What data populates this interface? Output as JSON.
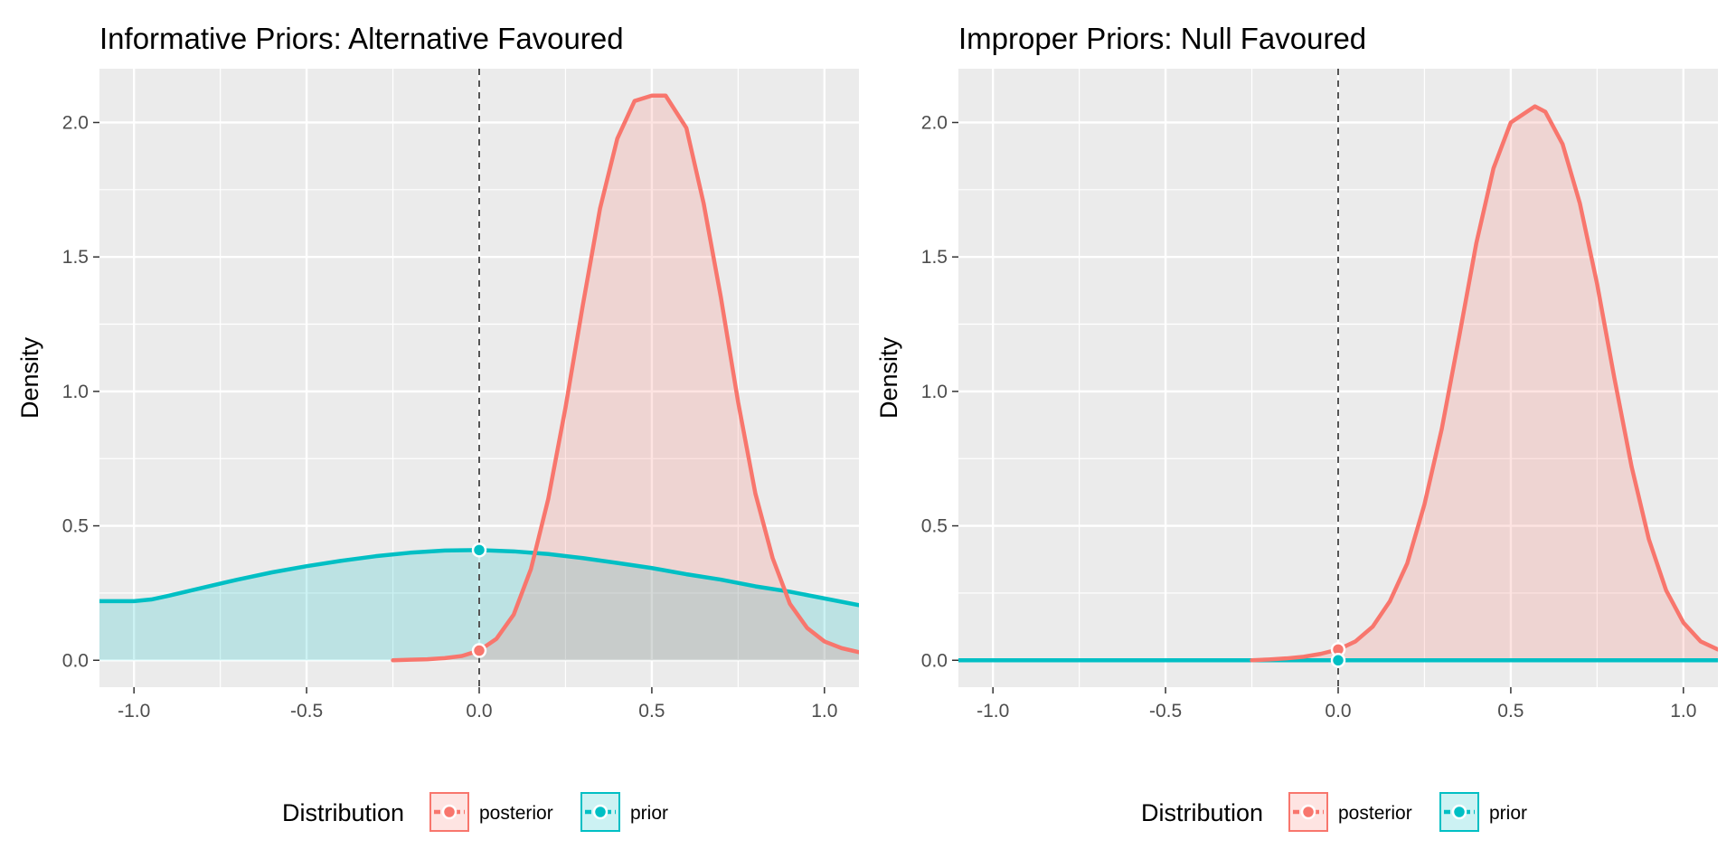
{
  "chart_data": [
    {
      "type": "line",
      "title": "Informative Priors: Alternative Favoured",
      "xlabel": "",
      "ylabel": "Density",
      "xlim": [
        -1.1,
        1.1
      ],
      "ylim": [
        -0.1,
        2.2
      ],
      "x_ticks": [
        "-1.0",
        "-0.5",
        "0.0",
        "0.5",
        "1.0"
      ],
      "y_ticks": [
        "0.0",
        "0.5",
        "1.0",
        "1.5",
        "2.0"
      ],
      "grid": true,
      "reference_line": {
        "x": 0,
        "style": "dashed"
      },
      "series": [
        {
          "name": "posterior",
          "color": "#F8766D",
          "filled": true,
          "x": [
            -0.25,
            -0.2,
            -0.15,
            -0.1,
            -0.05,
            0.0,
            0.05,
            0.1,
            0.15,
            0.2,
            0.25,
            0.3,
            0.35,
            0.4,
            0.45,
            0.5,
            0.54,
            0.6,
            0.65,
            0.7,
            0.75,
            0.8,
            0.85,
            0.9,
            0.95,
            1.0,
            1.05,
            1.1
          ],
          "y": [
            0.0,
            0.002,
            0.004,
            0.008,
            0.016,
            0.036,
            0.08,
            0.17,
            0.34,
            0.6,
            0.94,
            1.32,
            1.68,
            1.94,
            2.08,
            2.1,
            2.1,
            1.98,
            1.7,
            1.35,
            0.96,
            0.62,
            0.38,
            0.21,
            0.12,
            0.07,
            0.045,
            0.03
          ]
        },
        {
          "name": "prior",
          "color": "#00BFC4",
          "filled": true,
          "x": [
            -1.1,
            -1.05,
            -1.0,
            -0.95,
            -0.9,
            -0.8,
            -0.7,
            -0.6,
            -0.5,
            -0.4,
            -0.3,
            -0.2,
            -0.1,
            0.0,
            0.1,
            0.2,
            0.3,
            0.4,
            0.5,
            0.6,
            0.7,
            0.8,
            0.9,
            1.0,
            1.1
          ],
          "y": [
            0.22,
            0.22,
            0.22,
            0.226,
            0.24,
            0.27,
            0.3,
            0.327,
            0.35,
            0.37,
            0.387,
            0.4,
            0.408,
            0.41,
            0.405,
            0.395,
            0.38,
            0.362,
            0.343,
            0.32,
            0.3,
            0.275,
            0.255,
            0.23,
            0.205
          ]
        }
      ],
      "points": [
        {
          "series": "posterior",
          "x": 0.0,
          "y": 0.036
        },
        {
          "series": "prior",
          "x": 0.0,
          "y": 0.41
        }
      ],
      "legend": {
        "title": "Distribution",
        "position": "bottom",
        "items": [
          "posterior",
          "prior"
        ]
      }
    },
    {
      "type": "line",
      "title": "Improper Priors: Null Favoured",
      "xlabel": "",
      "ylabel": "Density",
      "xlim": [
        -1.1,
        1.1
      ],
      "ylim": [
        -0.1,
        2.2
      ],
      "x_ticks": [
        "-1.0",
        "-0.5",
        "0.0",
        "0.5",
        "1.0"
      ],
      "y_ticks": [
        "0.0",
        "0.5",
        "1.0",
        "1.5",
        "2.0"
      ],
      "grid": true,
      "reference_line": {
        "x": 0,
        "style": "dashed"
      },
      "series": [
        {
          "name": "posterior",
          "color": "#F8766D",
          "filled": true,
          "x": [
            -0.25,
            -0.2,
            -0.15,
            -0.1,
            -0.05,
            0.0,
            0.05,
            0.1,
            0.15,
            0.2,
            0.25,
            0.3,
            0.35,
            0.4,
            0.45,
            0.5,
            0.57,
            0.6,
            0.65,
            0.7,
            0.75,
            0.8,
            0.85,
            0.9,
            0.95,
            1.0,
            1.05,
            1.1
          ],
          "y": [
            0.0,
            0.003,
            0.007,
            0.013,
            0.024,
            0.04,
            0.07,
            0.125,
            0.22,
            0.36,
            0.58,
            0.86,
            1.2,
            1.55,
            1.83,
            2.0,
            2.06,
            2.04,
            1.92,
            1.7,
            1.4,
            1.05,
            0.72,
            0.45,
            0.26,
            0.14,
            0.07,
            0.04
          ]
        },
        {
          "name": "prior",
          "color": "#00BFC4",
          "filled": false,
          "x": [
            -1.1,
            1.1
          ],
          "y": [
            0.0,
            0.0
          ]
        }
      ],
      "points": [
        {
          "series": "posterior",
          "x": 0.0,
          "y": 0.04
        },
        {
          "series": "prior",
          "x": 0.0,
          "y": 0.0
        }
      ],
      "legend": {
        "title": "Distribution",
        "position": "bottom",
        "items": [
          "posterior",
          "prior"
        ]
      }
    }
  ]
}
